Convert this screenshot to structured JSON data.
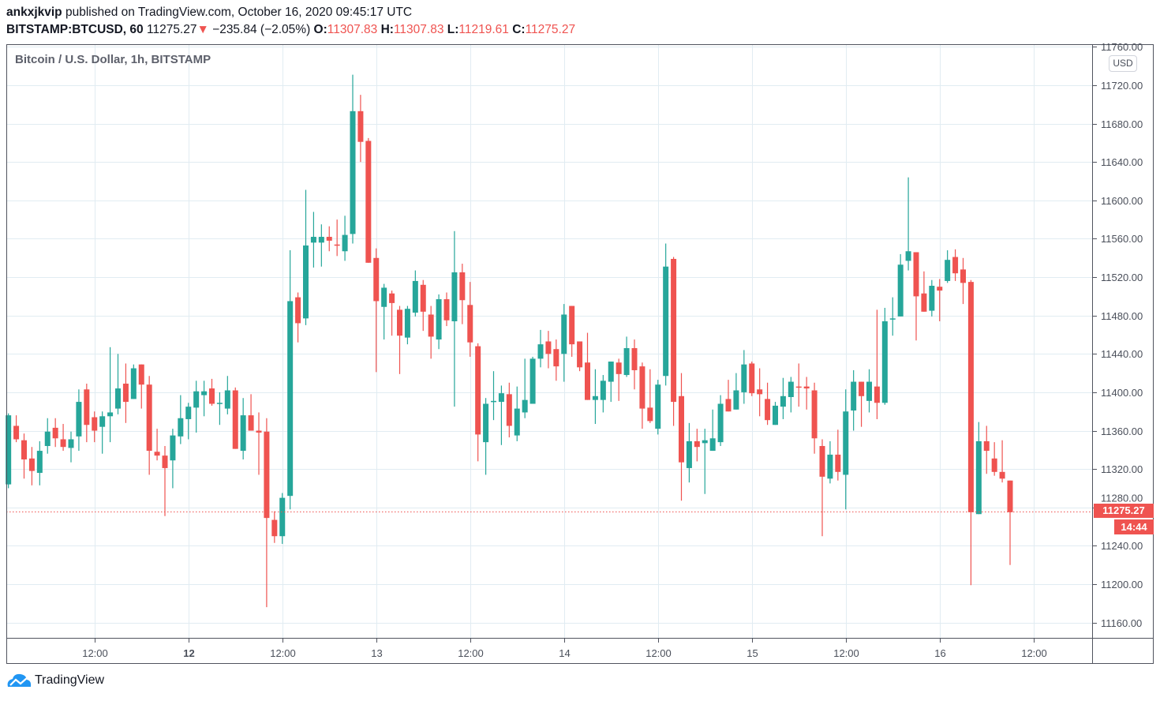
{
  "header": {
    "author": "ankxjkvip",
    "published_text": "published on TradingView.com, October 16, 2020 09:45:17 UTC",
    "symbol": "BITSTAMP:BTCUSD, 60",
    "last": "11275.27",
    "change": "−235.84 (−2.05%)",
    "o_label": "O:",
    "o": "11307.83",
    "h_label": "H:",
    "h": "11307.83",
    "l_label": "L:",
    "l": "11219.61",
    "c_label": "C:",
    "c": "11275.27"
  },
  "legend_title": "Bitcoin / U.S. Dollar, 1h, BITSTAMP",
  "currency": "USD",
  "last_price_label": "11275.27",
  "countdown": "14:44",
  "brand": "TradingView",
  "colors": {
    "up": "#26a69a",
    "down": "#ef5350",
    "grid": "#e1ecf2"
  },
  "chart_data": {
    "type": "candlestick",
    "title": "Bitcoin / U.S. Dollar, 1h, BITSTAMP",
    "ylim": [
      11140,
      11770
    ],
    "yticks": [
      "11160.00",
      "11200.00",
      "11240.00",
      "11280.00",
      "11320.00",
      "11360.00",
      "11400.00",
      "11440.00",
      "11480.00",
      "11520.00",
      "11560.00",
      "11600.00",
      "11640.00",
      "11680.00",
      "11720.00",
      "11760.00"
    ],
    "xticks": [
      {
        "label": "12:00",
        "index": 11,
        "bold": false
      },
      {
        "label": "12",
        "index": 23,
        "bold": true
      },
      {
        "label": "12:00",
        "index": 35,
        "bold": false
      },
      {
        "label": "13",
        "index": 47,
        "bold": false
      },
      {
        "label": "12:00",
        "index": 59,
        "bold": false
      },
      {
        "label": "14",
        "index": 71,
        "bold": false
      },
      {
        "label": "12:00",
        "index": 83,
        "bold": false
      },
      {
        "label": "15",
        "index": 95,
        "bold": false
      },
      {
        "label": "12:00",
        "index": 107,
        "bold": false
      },
      {
        "label": "16",
        "index": 119,
        "bold": false
      },
      {
        "label": "12:00",
        "index": 131,
        "bold": false
      }
    ],
    "last_price": 11275.27,
    "ohlc": [
      [
        11304,
        11378,
        11300,
        11376
      ],
      [
        11365,
        11376,
        11348,
        11351
      ],
      [
        11350,
        11357,
        11310,
        11330
      ],
      [
        11331,
        11343,
        11303,
        11318
      ],
      [
        11316,
        11349,
        11303,
        11339
      ],
      [
        11344,
        11373,
        11336,
        11359
      ],
      [
        11363,
        11373,
        11343,
        11352
      ],
      [
        11351,
        11367,
        11339,
        11343
      ],
      [
        11342,
        11359,
        11327,
        11351
      ],
      [
        11354,
        11403,
        11339,
        11390
      ],
      [
        11403,
        11409,
        11348,
        11366
      ],
      [
        11374,
        11380,
        11348,
        11360
      ],
      [
        11364,
        11380,
        11336,
        11375
      ],
      [
        11375,
        11447,
        11348,
        11379
      ],
      [
        11383,
        11440,
        11377,
        11404
      ],
      [
        11409,
        11430,
        11368,
        11390
      ],
      [
        11393,
        11429,
        11393,
        11425
      ],
      [
        11429,
        11429,
        11383,
        11408
      ],
      [
        11408,
        11417,
        11314,
        11339
      ],
      [
        11338,
        11362,
        11329,
        11334
      ],
      [
        11334,
        11344,
        11271,
        11321
      ],
      [
        11329,
        11362,
        11300,
        11355
      ],
      [
        11354,
        11397,
        11346,
        11373
      ],
      [
        11372,
        11389,
        11351,
        11385
      ],
      [
        11384,
        11412,
        11358,
        11401
      ],
      [
        11397,
        11412,
        11375,
        11401
      ],
      [
        11404,
        11414,
        11386,
        11388
      ],
      [
        11388,
        11400,
        11366,
        11389
      ],
      [
        11383,
        11417,
        11377,
        11402
      ],
      [
        11402,
        11405,
        11341,
        11341
      ],
      [
        11339,
        11394,
        11330,
        11376
      ],
      [
        11376,
        11398,
        11360,
        11360
      ],
      [
        11360,
        11379,
        11314,
        11358
      ],
      [
        11359,
        11373,
        11176,
        11269
      ],
      [
        11267,
        11276,
        11243,
        11250
      ],
      [
        11250,
        11295,
        11242,
        11290
      ],
      [
        11292,
        11548,
        11278,
        11495
      ],
      [
        11499,
        11504,
        11452,
        11472
      ],
      [
        11477,
        11611,
        11470,
        11553
      ],
      [
        11556,
        11588,
        11530,
        11562
      ],
      [
        11556,
        11575,
        11531,
        11562
      ],
      [
        11562,
        11573,
        11547,
        11558
      ],
      [
        11554,
        11580,
        11542,
        11553
      ],
      [
        11547,
        11584,
        11537,
        11564
      ],
      [
        11565,
        11731,
        11555,
        11693
      ],
      [
        11693,
        11710,
        11640,
        11661
      ],
      [
        11662,
        11665,
        11535,
        11535
      ],
      [
        11540,
        11550,
        11421,
        11495
      ],
      [
        11489,
        11513,
        11455,
        11509
      ],
      [
        11503,
        11506,
        11459,
        11493
      ],
      [
        11486,
        11490,
        11419,
        11459
      ],
      [
        11457,
        11490,
        11450,
        11487
      ],
      [
        11483,
        11527,
        11479,
        11516
      ],
      [
        11512,
        11517,
        11464,
        11484
      ],
      [
        11481,
        11490,
        11435,
        11458
      ],
      [
        11455,
        11502,
        11445,
        11497
      ],
      [
        11497,
        11504,
        11469,
        11475
      ],
      [
        11474,
        11568,
        11385,
        11525
      ],
      [
        11525,
        11534,
        11471,
        11496
      ],
      [
        11491,
        11515,
        11437,
        11452
      ],
      [
        11448,
        11451,
        11328,
        11356
      ],
      [
        11348,
        11394,
        11314,
        11388
      ],
      [
        11390,
        11422,
        11371,
        11391
      ],
      [
        11390,
        11407,
        11345,
        11399
      ],
      [
        11398,
        11410,
        11353,
        11365
      ],
      [
        11355,
        11406,
        11349,
        11383
      ],
      [
        11379,
        11435,
        11373,
        11392
      ],
      [
        11388,
        11437,
        11388,
        11435
      ],
      [
        11435,
        11465,
        11426,
        11450
      ],
      [
        11453,
        11464,
        11425,
        11440
      ],
      [
        11445,
        11455,
        11412,
        11427
      ],
      [
        11440,
        11492,
        11411,
        11481
      ],
      [
        11490,
        11490,
        11437,
        11450
      ],
      [
        11453,
        11453,
        11422,
        11426
      ],
      [
        11431,
        11462,
        11392,
        11392
      ],
      [
        11392,
        11424,
        11367,
        11396
      ],
      [
        11392,
        11418,
        11379,
        11412
      ],
      [
        11411,
        11432,
        11390,
        11432
      ],
      [
        11431,
        11435,
        11391,
        11419
      ],
      [
        11418,
        11458,
        11416,
        11446
      ],
      [
        11446,
        11455,
        11403,
        11423
      ],
      [
        11427,
        11431,
        11362,
        11383
      ],
      [
        11384,
        11424,
        11368,
        11370
      ],
      [
        11362,
        11413,
        11356,
        11408
      ],
      [
        11417,
        11555,
        11407,
        11531
      ],
      [
        11539,
        11541,
        11365,
        11390
      ],
      [
        11396,
        11420,
        11287,
        11327
      ],
      [
        11321,
        11368,
        11306,
        11349
      ],
      [
        11349,
        11362,
        11328,
        11343
      ],
      [
        11347,
        11362,
        11294,
        11350
      ],
      [
        11339,
        11382,
        11339,
        11352
      ],
      [
        11348,
        11397,
        11344,
        11388
      ],
      [
        11393,
        11413,
        11380,
        11380
      ],
      [
        11382,
        11420,
        11382,
        11402
      ],
      [
        11400,
        11444,
        11388,
        11429
      ],
      [
        11430,
        11432,
        11396,
        11399
      ],
      [
        11403,
        11425,
        11375,
        11398
      ],
      [
        11393,
        11410,
        11366,
        11371
      ],
      [
        11366,
        11390,
        11366,
        11386
      ],
      [
        11385,
        11415,
        11372,
        11396
      ],
      [
        11395,
        11416,
        11379,
        11411
      ],
      [
        11406,
        11430,
        11385,
        11405
      ],
      [
        11406,
        11416,
        11382,
        11404
      ],
      [
        11402,
        11410,
        11336,
        11352
      ],
      [
        11344,
        11351,
        11250,
        11312
      ],
      [
        11310,
        11349,
        11305,
        11335
      ],
      [
        11335,
        11361,
        11308,
        11317
      ],
      [
        11314,
        11403,
        11278,
        11380
      ],
      [
        11381,
        11423,
        11360,
        11411
      ],
      [
        11411,
        11411,
        11364,
        11396
      ],
      [
        11391,
        11424,
        11379,
        11411
      ],
      [
        11406,
        11486,
        11372,
        11389
      ],
      [
        11389,
        11488,
        11387,
        11474
      ],
      [
        11476,
        11499,
        11459,
        11477
      ],
      [
        11479,
        11544,
        11479,
        11533
      ],
      [
        11537,
        11624,
        11527,
        11547
      ],
      [
        11546,
        11546,
        11454,
        11500
      ],
      [
        11503,
        11526,
        11484,
        11484
      ],
      [
        11485,
        11517,
        11479,
        11511
      ],
      [
        11510,
        11518,
        11474,
        11506
      ],
      [
        11516,
        11548,
        11514,
        11538
      ],
      [
        11541,
        11549,
        11516,
        11524
      ],
      [
        11528,
        11540,
        11492,
        11514
      ],
      [
        11515,
        11517,
        11199,
        11275
      ],
      [
        11273,
        11369,
        11273,
        11349
      ],
      [
        11349,
        11365,
        11315,
        11339
      ],
      [
        11331,
        11348,
        11313,
        11317
      ],
      [
        11317,
        11350,
        11306,
        11310
      ],
      [
        11308,
        11308,
        11220,
        11275
      ]
    ]
  }
}
